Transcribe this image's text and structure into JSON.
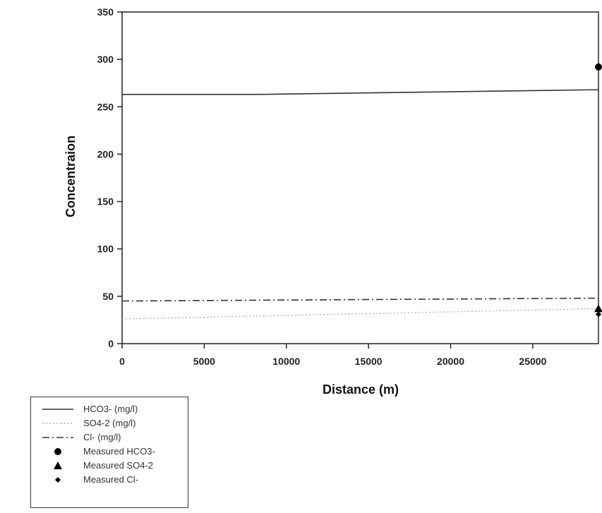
{
  "chart_data": {
    "type": "line",
    "xlabel": "Distance (m)",
    "ylabel": "Concentraion",
    "xlim": [
      0,
      29000
    ],
    "ylim": [
      0,
      350
    ],
    "xticks": [
      0,
      5000,
      10000,
      15000,
      20000,
      25000
    ],
    "yticks": [
      0,
      50,
      100,
      150,
      200,
      250,
      300,
      350
    ],
    "grid": false,
    "legend_position": "bottom-left",
    "series": [
      {
        "name": "HCO3- (mg/l)",
        "style": "solid",
        "color": "#333333",
        "x": [
          0,
          8000,
          29000
        ],
        "y": [
          263,
          263,
          268
        ]
      },
      {
        "name": "SO4-2 (mg/l)",
        "style": "dotted",
        "color": "#b0b0b0",
        "x": [
          0,
          29000
        ],
        "y": [
          26,
          37
        ]
      },
      {
        "name": "Cl- (mg/l)",
        "style": "dashdot",
        "color": "#333333",
        "x": [
          0,
          29000
        ],
        "y": [
          45,
          48
        ]
      }
    ],
    "measured": [
      {
        "name": "Measured HCO3-",
        "marker": "circle",
        "x": 29000,
        "y": 292
      },
      {
        "name": "Measured SO4-2",
        "marker": "triangle",
        "x": 29000,
        "y": 37
      },
      {
        "name": "Measured Cl-",
        "marker": "diamond",
        "x": 29000,
        "y": 31
      }
    ]
  }
}
